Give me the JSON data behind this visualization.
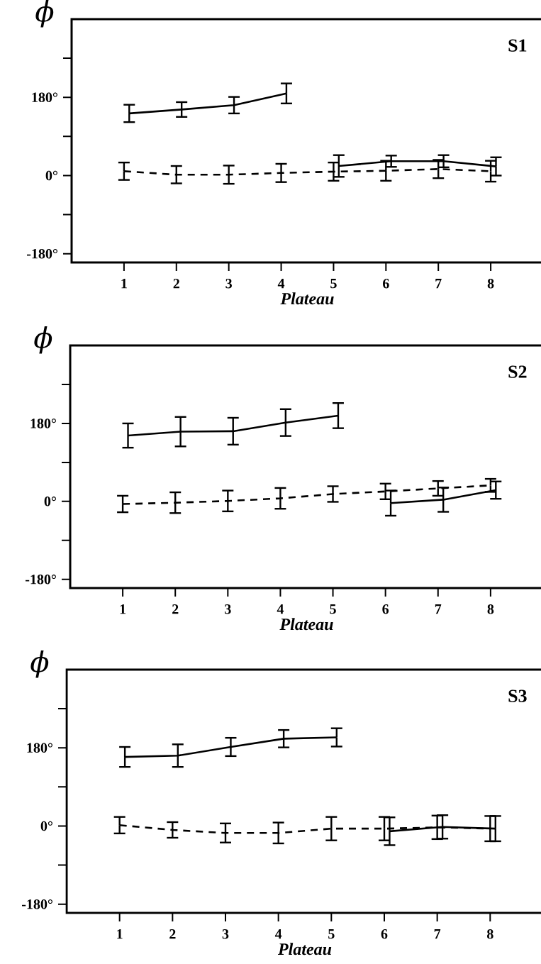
{
  "chart_data": [
    {
      "type": "line",
      "ylabel": "ϕ",
      "xlabel": "Plateau",
      "annotations": [
        "S1"
      ],
      "xlim": [
        0,
        9
      ],
      "ylim": [
        -200,
        360
      ],
      "xticks": [
        1,
        2,
        3,
        4,
        5,
        6,
        7,
        8
      ],
      "yticks": [
        {
          "value": -180,
          "label": "-180°"
        },
        {
          "value": -90,
          "label": null
        },
        {
          "value": 0,
          "label": "0°"
        },
        {
          "value": 90,
          "label": null
        },
        {
          "value": 180,
          "label": "180°"
        },
        {
          "value": 270,
          "label": null
        }
      ],
      "series": [
        {
          "color": "#000000",
          "line_style": "solid",
          "x": [
            1.1,
            2.1,
            3.1,
            4.1
          ],
          "values": [
            143,
            152,
            162,
            189
          ],
          "errors": [
            20,
            17,
            19,
            23
          ]
        },
        {
          "color": "#000000",
          "line_style": "solid",
          "x": [
            5.1,
            6.1,
            7.1,
            8.1
          ],
          "values": [
            22,
            33,
            33,
            21
          ],
          "errors": [
            25,
            13,
            14,
            21
          ]
        },
        {
          "color": "#000000",
          "line_style": "dashed",
          "x": [
            1,
            2,
            3,
            4,
            5,
            6,
            7,
            8
          ],
          "values": [
            10,
            2,
            2,
            6,
            9,
            11,
            15,
            10
          ],
          "errors": [
            20,
            20,
            21,
            21,
            21,
            23,
            21,
            24
          ]
        }
      ]
    },
    {
      "type": "line",
      "ylabel": "ϕ",
      "xlabel": "Plateau",
      "annotations": [
        "S2"
      ],
      "xlim": [
        0,
        9
      ],
      "ylim": [
        -200,
        360
      ],
      "xticks": [
        1,
        2,
        3,
        4,
        5,
        6,
        7,
        8
      ],
      "yticks": [
        {
          "value": -180,
          "label": "-180°"
        },
        {
          "value": -90,
          "label": null
        },
        {
          "value": 0,
          "label": "0°"
        },
        {
          "value": 90,
          "label": null
        },
        {
          "value": 180,
          "label": "180°"
        },
        {
          "value": 270,
          "label": null
        }
      ],
      "series": [
        {
          "color": "#000000",
          "line_style": "solid",
          "x": [
            1.1,
            2.1,
            3.1,
            4.1,
            5.1
          ],
          "values": [
            152,
            161,
            162,
            182,
            198
          ],
          "errors": [
            28,
            34,
            31,
            31,
            29
          ]
        },
        {
          "color": "#000000",
          "line_style": "solid",
          "x": [
            6.1,
            7.1,
            8.1
          ],
          "values": [
            -4,
            4,
            26
          ],
          "errors": [
            29,
            28,
            20
          ]
        },
        {
          "color": "#000000",
          "line_style": "dashed",
          "x": [
            1,
            2,
            3,
            4,
            5,
            6,
            7,
            8
          ],
          "values": [
            -6,
            -3,
            1,
            7,
            17,
            23,
            30,
            37
          ],
          "errors": [
            19,
            24,
            24,
            24,
            18,
            18,
            17,
            15
          ]
        }
      ]
    },
    {
      "type": "line",
      "ylabel": "ϕ",
      "xlabel": "Plateau",
      "annotations": [
        "S3"
      ],
      "xlim": [
        0,
        9
      ],
      "ylim": [
        -200,
        360
      ],
      "xticks": [
        1,
        2,
        3,
        4,
        5,
        6,
        7,
        8
      ],
      "yticks": [
        {
          "value": -180,
          "label": "-180°"
        },
        {
          "value": -90,
          "label": null
        },
        {
          "value": 0,
          "label": "0°"
        },
        {
          "value": 90,
          "label": null
        },
        {
          "value": 180,
          "label": "180°"
        },
        {
          "value": 270,
          "label": null
        }
      ],
      "series": [
        {
          "color": "#000000",
          "line_style": "solid",
          "x": [
            1.1,
            2.1,
            3.1,
            4.1,
            5.1
          ],
          "values": [
            159,
            162,
            182,
            201,
            204
          ],
          "errors": [
            23,
            26,
            21,
            20,
            21
          ]
        },
        {
          "color": "#000000",
          "line_style": "solid",
          "x": [
            6.1,
            7.1,
            8.1
          ],
          "values": [
            -12,
            -2,
            -6
          ],
          "errors": [
            32,
            27,
            29
          ]
        },
        {
          "color": "#000000",
          "line_style": "dashed",
          "x": [
            1,
            2,
            3,
            4,
            5,
            6,
            7,
            8
          ],
          "values": [
            2,
            -9,
            -16,
            -16,
            -6,
            -6,
            -3,
            -6
          ],
          "errors": [
            19,
            18,
            22,
            24,
            27,
            27,
            27,
            29
          ]
        }
      ]
    }
  ]
}
